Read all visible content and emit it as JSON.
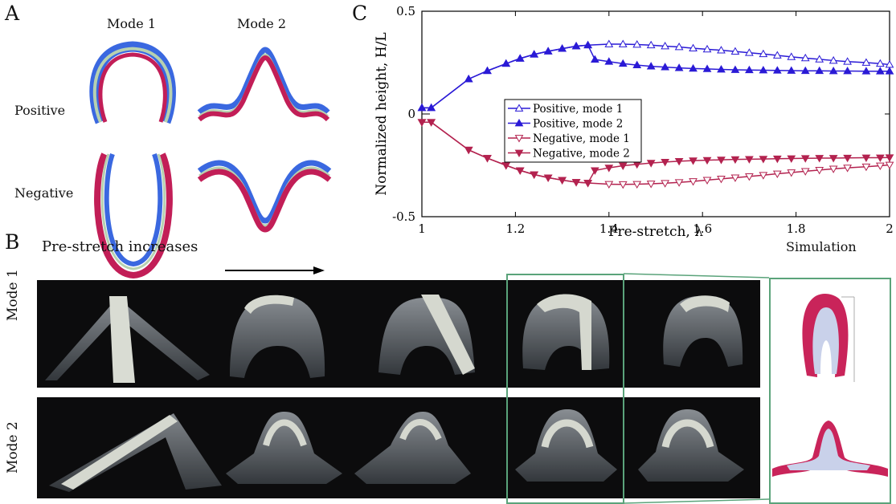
{
  "figure": {
    "panel_a": {
      "letter": "A",
      "col_mode1": "Mode 1",
      "col_mode2": "Mode 2",
      "row_positive": "Positive",
      "row_negative": "Negative",
      "colors": {
        "blue": "#3a68e0",
        "red": "#c21e57",
        "middle": "#b7d1b0"
      }
    },
    "panel_b": {
      "letter": "B",
      "prestretch_text": "Pre-stretch increases",
      "row_mode1": "Mode 1",
      "row_mode2": "Mode 2",
      "simulation_label": "Simulation"
    },
    "panel_c": {
      "letter": "C"
    }
  },
  "chart_data": {
    "type": "line",
    "xlabel": "Pre-stretch, λ",
    "ylabel": "Normalized height, H/L",
    "xlim": [
      1,
      2
    ],
    "ylim": [
      -0.5,
      0.5
    ],
    "xticks": [
      "1",
      "1.2",
      "1.4",
      "1.6",
      "1.8",
      "2"
    ],
    "yticks": [
      "-0.5",
      "0",
      "0.5"
    ],
    "legend_position": "center-left",
    "series": [
      {
        "name": "Positive,  mode 1",
        "color": "#2a1ad6",
        "marker": "triangle-up-open",
        "x": [
          1.0,
          1.02,
          1.1,
          1.14,
          1.18,
          1.21,
          1.24,
          1.27,
          1.3,
          1.33,
          1.355,
          1.4,
          1.43,
          1.46,
          1.49,
          1.52,
          1.55,
          1.58,
          1.61,
          1.64,
          1.67,
          1.7,
          1.73,
          1.76,
          1.79,
          1.82,
          1.85,
          1.88,
          1.91,
          1.95,
          1.98,
          2.0
        ],
        "y": [
          0.03,
          0.03,
          0.17,
          0.21,
          0.245,
          0.27,
          0.29,
          0.305,
          0.318,
          0.33,
          0.335,
          0.34,
          0.34,
          0.338,
          0.335,
          0.33,
          0.326,
          0.32,
          0.315,
          0.31,
          0.304,
          0.298,
          0.292,
          0.285,
          0.278,
          0.272,
          0.266,
          0.26,
          0.255,
          0.25,
          0.245,
          0.24
        ]
      },
      {
        "name": "Positive,  mode 2",
        "color": "#2a1ad6",
        "marker": "triangle-up-filled",
        "x": [
          1.0,
          1.02,
          1.1,
          1.14,
          1.18,
          1.21,
          1.24,
          1.27,
          1.3,
          1.33,
          1.355,
          1.37,
          1.4,
          1.43,
          1.46,
          1.49,
          1.52,
          1.55,
          1.58,
          1.61,
          1.64,
          1.67,
          1.7,
          1.73,
          1.76,
          1.79,
          1.82,
          1.85,
          1.88,
          1.91,
          1.95,
          1.98,
          2.0
        ],
        "y": [
          0.03,
          0.03,
          0.17,
          0.21,
          0.245,
          0.27,
          0.29,
          0.305,
          0.318,
          0.33,
          0.335,
          0.265,
          0.255,
          0.245,
          0.238,
          0.232,
          0.228,
          0.224,
          0.221,
          0.219,
          0.217,
          0.215,
          0.214,
          0.213,
          0.212,
          0.211,
          0.21,
          0.21,
          0.209,
          0.209,
          0.208,
          0.208,
          0.208
        ]
      },
      {
        "name": "Negative, mode 1",
        "color": "#b3224f",
        "marker": "triangle-down-open",
        "x": [
          1.0,
          1.02,
          1.1,
          1.14,
          1.18,
          1.21,
          1.24,
          1.27,
          1.3,
          1.33,
          1.355,
          1.4,
          1.43,
          1.46,
          1.49,
          1.52,
          1.55,
          1.58,
          1.61,
          1.64,
          1.67,
          1.7,
          1.73,
          1.76,
          1.79,
          1.82,
          1.85,
          1.88,
          1.91,
          1.95,
          1.98,
          2.0
        ],
        "y": [
          -0.04,
          -0.04,
          -0.175,
          -0.215,
          -0.25,
          -0.275,
          -0.295,
          -0.31,
          -0.322,
          -0.332,
          -0.336,
          -0.342,
          -0.343,
          -0.342,
          -0.34,
          -0.337,
          -0.333,
          -0.328,
          -0.322,
          -0.316,
          -0.31,
          -0.304,
          -0.298,
          -0.291,
          -0.285,
          -0.279,
          -0.273,
          -0.267,
          -0.262,
          -0.257,
          -0.252,
          -0.248
        ]
      },
      {
        "name": "Negative, mode 2",
        "color": "#b3224f",
        "marker": "triangle-down-filled",
        "x": [
          1.0,
          1.02,
          1.1,
          1.14,
          1.18,
          1.21,
          1.24,
          1.27,
          1.3,
          1.33,
          1.355,
          1.37,
          1.4,
          1.43,
          1.46,
          1.49,
          1.52,
          1.55,
          1.58,
          1.61,
          1.64,
          1.67,
          1.7,
          1.73,
          1.76,
          1.79,
          1.82,
          1.85,
          1.88,
          1.91,
          1.95,
          1.98,
          2.0
        ],
        "y": [
          -0.04,
          -0.04,
          -0.175,
          -0.215,
          -0.25,
          -0.275,
          -0.295,
          -0.31,
          -0.322,
          -0.332,
          -0.336,
          -0.275,
          -0.262,
          -0.252,
          -0.245,
          -0.239,
          -0.234,
          -0.23,
          -0.227,
          -0.225,
          -0.223,
          -0.221,
          -0.22,
          -0.219,
          -0.218,
          -0.217,
          -0.216,
          -0.215,
          -0.215,
          -0.214,
          -0.213,
          -0.213,
          -0.212
        ]
      }
    ]
  }
}
